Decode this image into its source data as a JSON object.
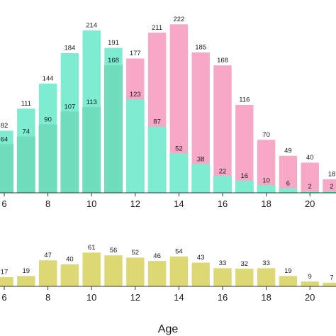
{
  "chart_data": [
    {
      "type": "bar",
      "stacked_overlay": true,
      "x": [
        6,
        7,
        8,
        9,
        10,
        11,
        12,
        13,
        14,
        15,
        16,
        17,
        18,
        19,
        20,
        21
      ],
      "x_tick_labels": [
        "6",
        "8",
        "10",
        "12",
        "14",
        "16",
        "18",
        "20"
      ],
      "series": [
        {
          "name": "",
          "color": "#7EECD0",
          "values": [
            64,
            74,
            90,
            107,
            113,
            168,
            123,
            87,
            52,
            38,
            22,
            16,
            10,
            6,
            2,
            2
          ]
        },
        {
          "name": "",
          "color": "#F7A8C4",
          "values": [
            82,
            111,
            144,
            184,
            214,
            191,
            177,
            211,
            222,
            185,
            168,
            116,
            70,
            49,
            40,
            18
          ]
        }
      ],
      "totals": [
        82,
        111,
        144,
        184,
        214,
        191,
        177,
        211,
        222,
        185,
        168,
        116,
        70,
        49,
        40,
        18
      ],
      "total_labels": [
        "82",
        "111",
        "144",
        "184",
        "214",
        "191",
        "177",
        "211",
        "222",
        "185",
        "168",
        "116",
        "70",
        "49",
        "40",
        "18"
      ],
      "inner_labels": [
        "64",
        "74",
        "90",
        "107",
        "113",
        "168",
        "123",
        "87",
        "52",
        "38",
        "22",
        "16",
        "10",
        "6",
        "2",
        "2"
      ],
      "ylim": [
        0,
        222
      ]
    },
    {
      "type": "bar",
      "x": [
        6,
        7,
        8,
        9,
        10,
        11,
        12,
        13,
        14,
        15,
        16,
        17,
        18,
        19,
        20,
        21
      ],
      "x_tick_labels": [
        "6",
        "8",
        "10",
        "12",
        "14",
        "16",
        "18",
        "20"
      ],
      "values": [
        17,
        19,
        47,
        40,
        61,
        56,
        52,
        46,
        54,
        43,
        33,
        32,
        33,
        19,
        9,
        7
      ],
      "value_labels": [
        "17",
        "19",
        "47",
        "40",
        "61",
        "56",
        "52",
        "46",
        "54",
        "43",
        "33",
        "32",
        "33",
        "19",
        "9",
        "7"
      ],
      "color": "#DCD874",
      "xlabel": "Age",
      "ylim": [
        0,
        61
      ]
    }
  ],
  "colors": {
    "green_fill": "#7EECD0",
    "green_dark": "#6FDFBF",
    "pink": "#F7A8C4",
    "olive": "#DCD874",
    "axis": "#333333"
  }
}
